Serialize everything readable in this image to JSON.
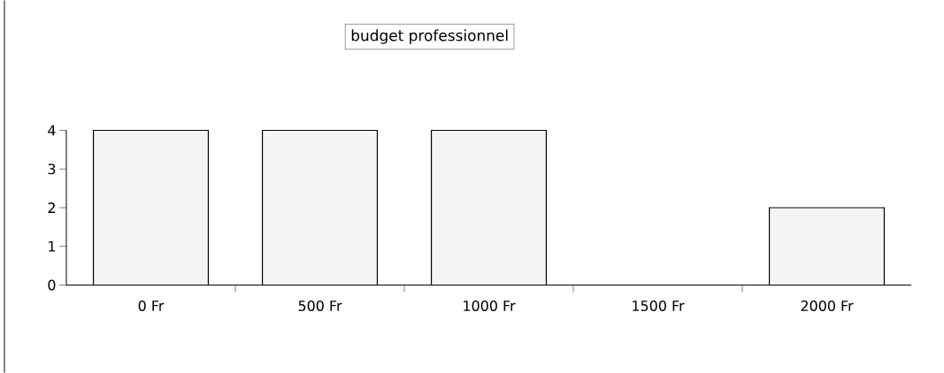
{
  "chart_data": {
    "type": "bar",
    "title": "budget professionnel",
    "categories": [
      "0 Fr",
      "500 Fr",
      "1000 Fr",
      "1500 Fr",
      "2000 Fr"
    ],
    "values": [
      4,
      4,
      4,
      0,
      2
    ],
    "color": "#f4f4f4",
    "ylim": [
      0,
      4
    ],
    "yticks": [
      0,
      1,
      2,
      3,
      4
    ]
  }
}
